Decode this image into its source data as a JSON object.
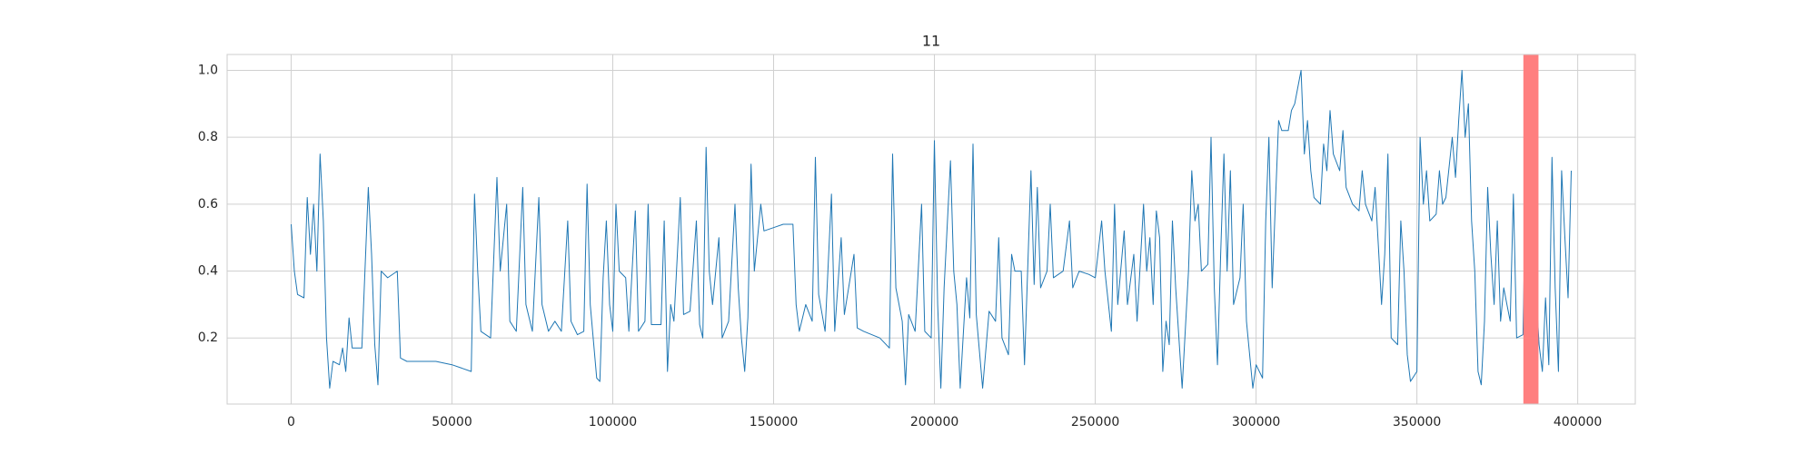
{
  "chart_data": {
    "type": "line",
    "title": "11",
    "color": "#1f77b4",
    "xlim": [
      -19900,
      417900
    ],
    "ylim": [
      0.0025,
      1.0475
    ],
    "xticks": [
      0,
      50000,
      100000,
      150000,
      200000,
      250000,
      300000,
      350000,
      400000
    ],
    "yticks": [
      0.2,
      0.4,
      0.6,
      {
        "value": 0.8,
        "label": "0.8"
      },
      {
        "value": 1.0,
        "label": "1.0"
      }
    ],
    "grid": true,
    "span": [
      383100,
      387800
    ],
    "span_color": "#ff7f7f",
    "x": [
      0,
      1000,
      2000,
      4000,
      5000,
      6000,
      7000,
      8000,
      9000,
      10000,
      11000,
      12000,
      13000,
      15000,
      16000,
      17000,
      18000,
      19000,
      22000,
      24000,
      25000,
      26000,
      27000,
      28000,
      30000,
      33000,
      34000,
      36000,
      45000,
      50000,
      56000,
      57000,
      58000,
      59000,
      62000,
      64000,
      65000,
      67000,
      68000,
      70000,
      72000,
      73000,
      75000,
      77000,
      78000,
      80000,
      82000,
      84000,
      86000,
      87000,
      89000,
      91000,
      92000,
      93000,
      95000,
      96000,
      97000,
      98000,
      99000,
      100000,
      101000,
      102000,
      104000,
      105000,
      107000,
      108000,
      110000,
      111000,
      112000,
      115000,
      116000,
      117000,
      118000,
      119000,
      121000,
      122000,
      124000,
      126000,
      127000,
      128000,
      129000,
      130000,
      131000,
      133000,
      134000,
      136000,
      138000,
      139000,
      140000,
      141000,
      142000,
      143000,
      144000,
      146000,
      147000,
      150000,
      153000,
      156000,
      157000,
      158000,
      160000,
      162000,
      163000,
      164000,
      166000,
      168000,
      169000,
      171000,
      172000,
      175000,
      176000,
      178000,
      183000,
      186000,
      187000,
      188000,
      190000,
      191000,
      192000,
      194000,
      196000,
      197000,
      199000,
      200000,
      201000,
      202000,
      203000,
      205000,
      206000,
      207000,
      208000,
      210000,
      211000,
      212000,
      213000,
      215000,
      217000,
      219000,
      220000,
      221000,
      223000,
      224000,
      225000,
      227000,
      228000,
      230000,
      231000,
      232000,
      233000,
      235000,
      236000,
      237000,
      240000,
      242000,
      243000,
      245000,
      248000,
      250000,
      252000,
      253000,
      255000,
      256000,
      257000,
      259000,
      260000,
      262000,
      263000,
      265000,
      266000,
      267000,
      268000,
      269000,
      270000,
      271000,
      272000,
      273000,
      274000,
      275000,
      277000,
      279000,
      280000,
      281000,
      282000,
      283000,
      285000,
      286000,
      287000,
      288000,
      289000,
      290000,
      291000,
      292000,
      293000,
      295000,
      296000,
      297000,
      299000,
      300000,
      302000,
      303000,
      304000,
      305000,
      306000,
      307000,
      308000,
      310000,
      311000,
      312000,
      313000,
      314000,
      315000,
      316000,
      317000,
      318000,
      320000,
      321000,
      322000,
      323000,
      324000,
      326000,
      327000,
      328000,
      330000,
      332000,
      333000,
      334000,
      336000,
      337000,
      338000,
      339000,
      340000,
      341000,
      342000,
      344000,
      345000,
      346000,
      347000,
      348000,
      350000,
      351000,
      352000,
      353000,
      354000,
      356000,
      357000,
      358000,
      359000,
      361000,
      362000,
      363000,
      364000,
      365000,
      366000,
      367000,
      368000,
      369000,
      370000,
      371000,
      372000,
      373000,
      374000,
      375000,
      376000,
      377000,
      378000,
      379000,
      380000,
      381000,
      383000,
      384000,
      385000,
      386000,
      387000,
      388000,
      389000,
      390000,
      391000,
      392000,
      393000,
      394000,
      395000,
      396000,
      397000,
      398000
    ],
    "values": [
      0.54,
      0.4,
      0.33,
      0.32,
      0.62,
      0.45,
      0.6,
      0.4,
      0.75,
      0.55,
      0.2,
      0.05,
      0.13,
      0.12,
      0.17,
      0.1,
      0.26,
      0.17,
      0.17,
      0.65,
      0.45,
      0.18,
      0.06,
      0.4,
      0.38,
      0.4,
      0.14,
      0.13,
      0.13,
      0.12,
      0.1,
      0.63,
      0.4,
      0.22,
      0.2,
      0.68,
      0.4,
      0.6,
      0.25,
      0.22,
      0.65,
      0.3,
      0.22,
      0.62,
      0.3,
      0.22,
      0.25,
      0.22,
      0.55,
      0.25,
      0.21,
      0.22,
      0.66,
      0.3,
      0.08,
      0.07,
      0.38,
      0.55,
      0.3,
      0.22,
      0.6,
      0.4,
      0.38,
      0.22,
      0.58,
      0.22,
      0.25,
      0.6,
      0.24,
      0.24,
      0.55,
      0.1,
      0.3,
      0.25,
      0.62,
      0.27,
      0.28,
      0.55,
      0.24,
      0.2,
      0.77,
      0.4,
      0.3,
      0.5,
      0.2,
      0.25,
      0.6,
      0.35,
      0.2,
      0.1,
      0.26,
      0.72,
      0.4,
      0.6,
      0.52,
      0.53,
      0.54,
      0.54,
      0.3,
      0.22,
      0.3,
      0.25,
      0.74,
      0.33,
      0.22,
      0.63,
      0.22,
      0.5,
      0.27,
      0.45,
      0.23,
      0.22,
      0.2,
      0.17,
      0.75,
      0.35,
      0.25,
      0.06,
      0.27,
      0.22,
      0.6,
      0.22,
      0.2,
      0.79,
      0.3,
      0.05,
      0.35,
      0.73,
      0.4,
      0.3,
      0.05,
      0.38,
      0.26,
      0.78,
      0.27,
      0.05,
      0.28,
      0.25,
      0.5,
      0.2,
      0.15,
      0.45,
      0.4,
      0.4,
      0.12,
      0.7,
      0.36,
      0.65,
      0.35,
      0.4,
      0.6,
      0.38,
      0.4,
      0.55,
      0.35,
      0.4,
      0.39,
      0.38,
      0.55,
      0.4,
      0.22,
      0.6,
      0.3,
      0.52,
      0.3,
      0.45,
      0.25,
      0.6,
      0.4,
      0.5,
      0.3,
      0.58,
      0.5,
      0.1,
      0.25,
      0.18,
      0.55,
      0.35,
      0.05,
      0.4,
      0.7,
      0.55,
      0.6,
      0.4,
      0.42,
      0.8,
      0.35,
      0.12,
      0.45,
      0.75,
      0.4,
      0.7,
      0.3,
      0.38,
      0.6,
      0.25,
      0.05,
      0.12,
      0.08,
      0.55,
      0.8,
      0.35,
      0.6,
      0.85,
      0.82,
      0.82,
      0.88,
      0.9,
      0.95,
      1.0,
      0.75,
      0.85,
      0.7,
      0.62,
      0.6,
      0.78,
      0.7,
      0.88,
      0.75,
      0.7,
      0.82,
      0.65,
      0.6,
      0.58,
      0.7,
      0.6,
      0.55,
      0.65,
      0.48,
      0.3,
      0.45,
      0.75,
      0.2,
      0.18,
      0.55,
      0.4,
      0.15,
      0.07,
      0.1,
      0.8,
      0.6,
      0.7,
      0.55,
      0.57,
      0.7,
      0.6,
      0.62,
      0.8,
      0.68,
      0.85,
      1.0,
      0.8,
      0.9,
      0.55,
      0.4,
      0.1,
      0.06,
      0.25,
      0.65,
      0.45,
      0.3,
      0.55,
      0.25,
      0.35,
      0.3,
      0.25,
      0.63,
      0.2,
      0.21,
      0.75,
      0.3,
      0.62,
      0.35,
      0.18,
      0.1,
      0.32,
      0.12,
      0.74,
      0.35,
      0.1,
      0.7,
      0.5,
      0.32,
      0.7
    ]
  }
}
